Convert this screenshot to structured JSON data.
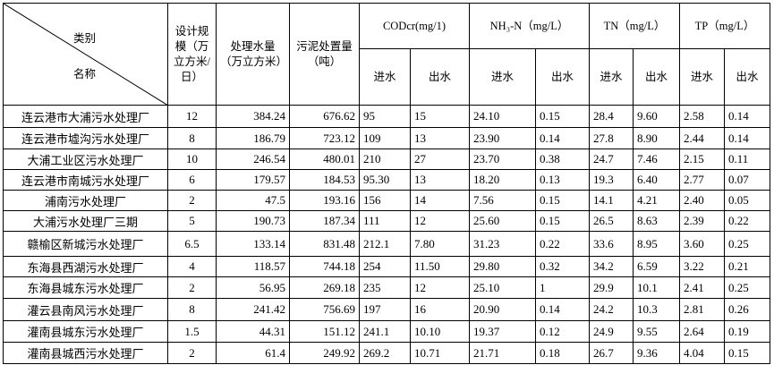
{
  "header": {
    "category_label": "类别",
    "name_label": "名称",
    "design_scale": "设计规模（万立方米/日）",
    "treated_water": "处理水量（万立方米）",
    "sludge": "污泥处置量（吨）",
    "codcr": "CODcr(mg/1)",
    "nh3n": "NH₃-N（mg/L）",
    "tn": "TN（mg/L）",
    "tp": "TP（mg/L）",
    "inflow": "进水",
    "outflow": "出水"
  },
  "rows": [
    [
      "连云港市大浦污水处理厂",
      "12",
      "384.24",
      "676.62",
      "95",
      "15",
      "24.10",
      "0.15",
      "28.4",
      "9.60",
      "2.58",
      "0.14"
    ],
    [
      "连云港市墟沟污水处理厂",
      "8",
      "186.79",
      "723.12",
      "109",
      "13",
      "23.90",
      "0.14",
      "27.8",
      "8.90",
      "2.44",
      "0.14"
    ],
    [
      "大浦工业区污水处理厂",
      "10",
      "246.54",
      "480.01",
      "210",
      "27",
      "23.70",
      "0.38",
      "24.7",
      "7.46",
      "2.15",
      "0.11"
    ],
    [
      "连云港市南城污水处理厂",
      "6",
      "179.57",
      "184.53",
      "95.30",
      "13",
      "18.20",
      "0.13",
      "19.3",
      "6.40",
      "2.77",
      "0.07"
    ],
    [
      "浦南污水处理厂",
      "2",
      "47.5",
      "193.16",
      "156",
      "14",
      "7.56",
      "0.15",
      "14.1",
      "4.21",
      "2.40",
      "0.05"
    ],
    [
      "大浦污水处理厂三期",
      "5",
      "190.73",
      "187.34",
      "111",
      "12",
      "25.60",
      "0.15",
      "26.5",
      "8.63",
      "2.39",
      "0.22"
    ],
    [
      "赣榆区新城污水处理厂",
      "6.5",
      "133.14",
      "831.48",
      "212.1",
      "7.80",
      "31.23",
      "0.22",
      "33.6",
      "8.95",
      "3.60",
      "0.25"
    ],
    [
      "东海县西湖污水处理厂",
      "4",
      "118.57",
      "744.18",
      "254",
      "11.50",
      "29.80",
      "0.32",
      "34.2",
      "6.59",
      "3.22",
      "0.21"
    ],
    [
      "东海县城东污水处理厂",
      "2",
      "56.95",
      "269.18",
      "235",
      "12",
      "25.10",
      "1",
      "29.9",
      "10.1",
      "2.41",
      "0.25"
    ],
    [
      "灌云县南风污水处理厂",
      "8",
      "241.42",
      "756.69",
      "197",
      "16",
      "20.90",
      "0.14",
      "24.2",
      "10.3",
      "2.81",
      "0.26"
    ],
    [
      "灌南县城东污水处理厂",
      "1.5",
      "44.31",
      "151.12",
      "241.1",
      "10.10",
      "19.37",
      "0.12",
      "24.9",
      "9.55",
      "2.64",
      "0.19"
    ],
    [
      "灌南县城西污水处理厂",
      "2",
      "61.4",
      "249.92",
      "269.2",
      "10.71",
      "21.71",
      "0.18",
      "26.7",
      "9.36",
      "4.04",
      "0.15"
    ]
  ]
}
